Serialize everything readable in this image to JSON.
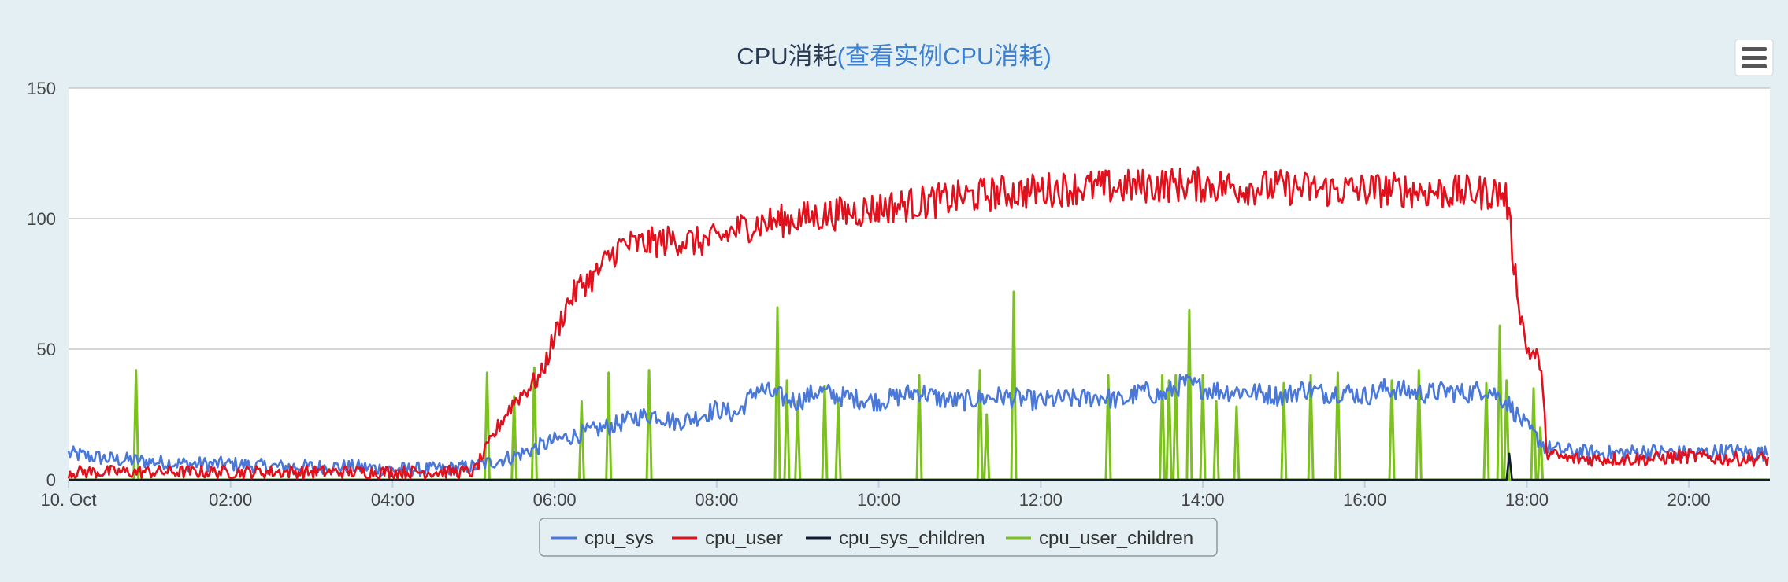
{
  "chart_data": {
    "type": "line",
    "title": "CPU消耗",
    "title_link": "(查看实例CPU消耗)",
    "xlabel": "",
    "ylabel": "",
    "x_tick_labels": [
      "10. Oct",
      "02:00",
      "04:00",
      "06:00",
      "08:00",
      "10:00",
      "12:00",
      "14:00",
      "16:00",
      "18:00",
      "20:00"
    ],
    "xlim": [
      "00:00",
      "21:00"
    ],
    "y_ticks": [
      0,
      50,
      100,
      150
    ],
    "ylim": [
      0,
      150
    ],
    "grid": true,
    "legend_position": "bottom-center",
    "series": [
      {
        "name": "cpu_sys",
        "color": "#4a78d8",
        "x": [
          "00:00",
          "00:30",
          "01:00",
          "01:30",
          "02:00",
          "02:30",
          "03:00",
          "03:30",
          "04:00",
          "04:30",
          "05:00",
          "05:15",
          "05:30",
          "05:45",
          "06:00",
          "06:15",
          "06:30",
          "06:45",
          "07:00",
          "07:15",
          "07:30",
          "07:45",
          "08:00",
          "08:15",
          "08:30",
          "08:45",
          "09:00",
          "09:15",
          "09:30",
          "09:45",
          "10:00",
          "10:15",
          "10:30",
          "10:45",
          "11:00",
          "11:15",
          "11:30",
          "11:45",
          "12:00",
          "12:15",
          "12:30",
          "12:45",
          "13:00",
          "13:15",
          "13:30",
          "13:45",
          "14:00",
          "14:15",
          "14:30",
          "14:45",
          "15:00",
          "15:15",
          "15:30",
          "15:45",
          "16:00",
          "16:15",
          "16:30",
          "16:45",
          "17:00",
          "17:15",
          "17:30",
          "17:45",
          "18:00",
          "18:15",
          "18:30",
          "19:00",
          "19:30",
          "20:00",
          "20:30",
          "21:00"
        ],
        "values": [
          10,
          8,
          7,
          6,
          6,
          5,
          5,
          5,
          4,
          4,
          5,
          7,
          9,
          12,
          15,
          17,
          19,
          21,
          24,
          25,
          22,
          24,
          27,
          25,
          35,
          32,
          30,
          34,
          32,
          31,
          30,
          32,
          34,
          31,
          30,
          31,
          32,
          31,
          30,
          31,
          31,
          32,
          30,
          34,
          32,
          37,
          35,
          34,
          34,
          33,
          32,
          35,
          33,
          34,
          32,
          35,
          34,
          33,
          34,
          33,
          35,
          30,
          20,
          12,
          11,
          10,
          11,
          10,
          11,
          10
        ]
      },
      {
        "name": "cpu_user",
        "color": "#e0101c",
        "x": [
          "00:00",
          "00:30",
          "01:00",
          "01:30",
          "02:00",
          "02:30",
          "03:00",
          "03:30",
          "04:00",
          "04:30",
          "05:00",
          "05:10",
          "05:20",
          "05:30",
          "05:40",
          "05:50",
          "06:00",
          "06:10",
          "06:20",
          "06:30",
          "06:40",
          "06:50",
          "07:00",
          "07:15",
          "07:30",
          "07:45",
          "08:00",
          "08:15",
          "08:30",
          "08:45",
          "09:00",
          "09:15",
          "09:30",
          "09:45",
          "10:00",
          "10:15",
          "10:30",
          "10:45",
          "11:00",
          "11:15",
          "11:30",
          "11:45",
          "12:00",
          "12:30",
          "13:00",
          "13:30",
          "14:00",
          "14:30",
          "15:00",
          "15:30",
          "16:00",
          "16:30",
          "17:00",
          "17:30",
          "17:40",
          "17:45",
          "17:50",
          "17:55",
          "18:00",
          "18:05",
          "18:10",
          "18:15",
          "18:30",
          "19:00",
          "19:30",
          "20:00",
          "20:30",
          "21:00"
        ],
        "values": [
          3,
          3,
          3,
          3,
          3,
          3,
          3,
          3,
          3,
          3,
          3,
          12,
          22,
          30,
          35,
          40,
          55,
          68,
          75,
          78,
          85,
          90,
          90,
          91,
          92,
          91,
          92,
          96,
          98,
          99,
          100,
          101,
          102,
          103,
          104,
          105,
          106,
          107,
          108,
          109,
          110,
          110,
          111,
          112,
          112,
          113,
          113,
          112,
          112,
          111,
          111,
          111,
          110,
          110,
          110,
          108,
          85,
          65,
          50,
          48,
          45,
          10,
          8,
          8,
          8,
          9,
          8,
          8
        ]
      },
      {
        "name": "cpu_sys_children",
        "color": "#101a33",
        "x": [
          "00:00",
          "17:45",
          "17:47",
          "17:49",
          "18:00",
          "21:00"
        ],
        "values": [
          0,
          0,
          10,
          0,
          0,
          0
        ]
      },
      {
        "name": "cpu_user_children",
        "color": "#7cc11e",
        "x": [
          "00:00",
          "00:50",
          "05:10",
          "05:30",
          "05:45",
          "06:20",
          "06:40",
          "07:10",
          "08:45",
          "08:52",
          "09:00",
          "09:20",
          "09:30",
          "10:30",
          "11:15",
          "11:20",
          "11:40",
          "12:50",
          "13:30",
          "13:35",
          "13:40",
          "13:50",
          "14:00",
          "14:10",
          "14:25",
          "15:00",
          "15:20",
          "15:40",
          "16:20",
          "16:40",
          "17:30",
          "17:40",
          "17:45",
          "18:05",
          "18:10"
        ],
        "values": [
          0,
          42,
          41,
          32,
          43,
          30,
          41,
          42,
          66,
          38,
          30,
          36,
          30,
          40,
          42,
          25,
          72,
          40,
          40,
          38,
          40,
          65,
          40,
          30,
          28,
          37,
          40,
          41,
          38,
          42,
          37,
          59,
          38,
          35,
          20
        ]
      }
    ]
  },
  "menu": {
    "icon": "hamburger-menu-icon"
  }
}
